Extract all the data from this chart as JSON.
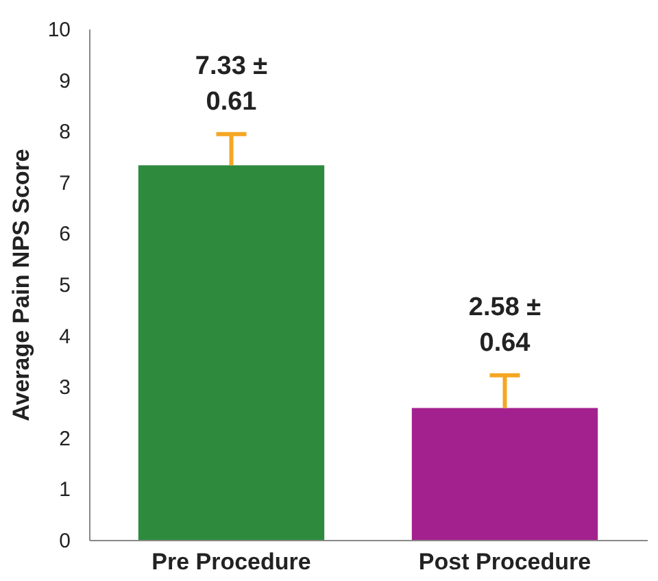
{
  "chart_data": {
    "type": "bar",
    "ylabel": "Average Pain NPS Score",
    "categories": [
      "Pre Procedure",
      "Post Procedure"
    ],
    "colors": [
      "#2e8b3e",
      "#a3218e"
    ],
    "values": [
      7.33,
      2.58
    ],
    "errors": [
      [
        7.33,
        7.94
      ],
      [
        2.58,
        3.22
      ]
    ],
    "value_labels": [
      "7.33 ± 0.61",
      "2.58 ± 0.64"
    ],
    "ylim": [
      0,
      10
    ],
    "yticks": [
      0,
      1,
      2,
      3,
      4,
      5,
      6,
      7,
      8,
      9,
      10
    ],
    "grid": false
  }
}
